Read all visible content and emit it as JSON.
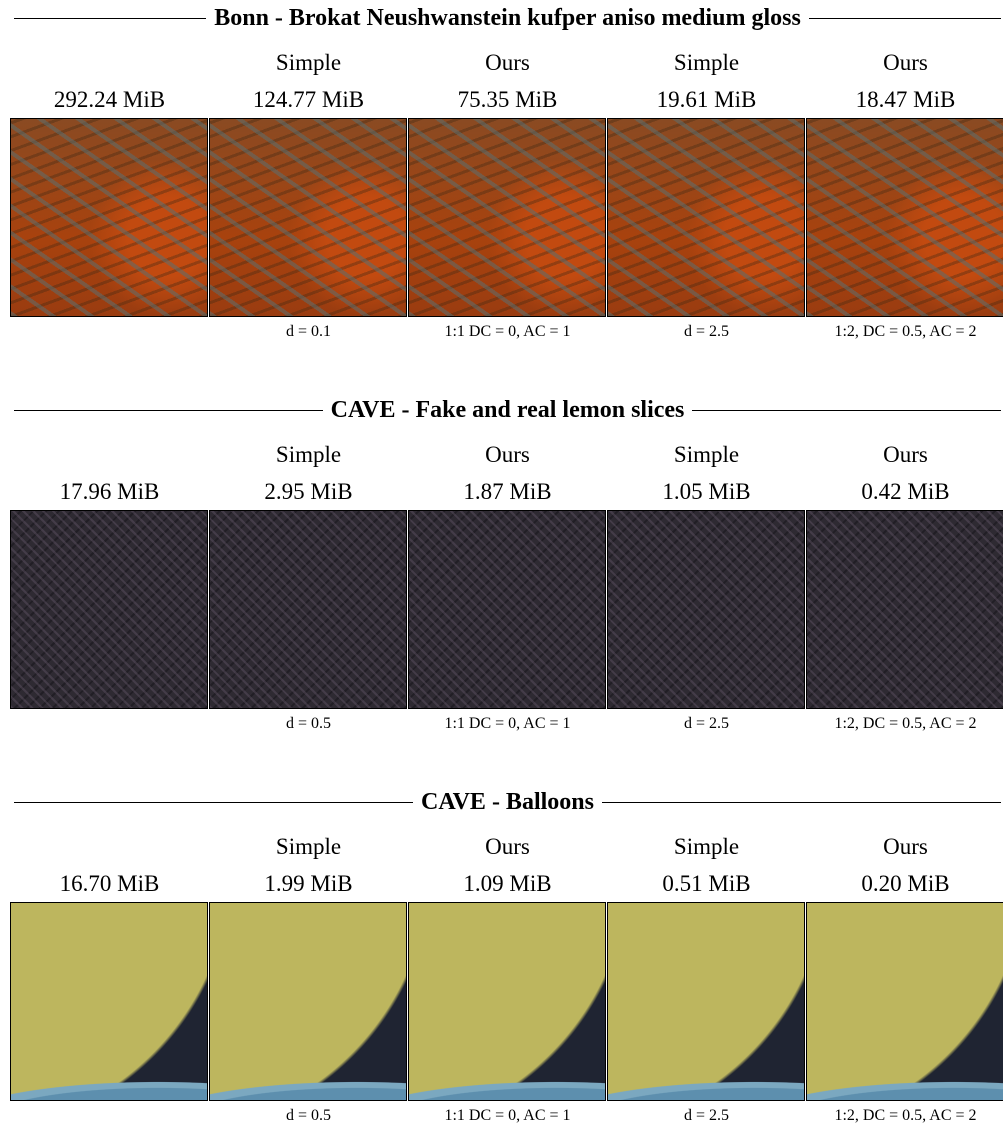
{
  "sections": [
    {
      "title": "Bonn - Brokat Neushwanstein kufper aniso medium gloss",
      "methods": [
        "Simple",
        "Ours",
        "Simple",
        "Ours"
      ],
      "sizes": [
        "292.24 MiB",
        "124.77 MiB",
        "75.35 MiB",
        "19.61 MiB",
        "18.47 MiB"
      ],
      "captions": [
        "d = 0.1",
        "1:1 DC = 0, AC = 1",
        "d = 2.5",
        "1:2, DC = 0.5, AC = 2"
      ]
    },
    {
      "title": "CAVE - Fake and real lemon slices",
      "methods": [
        "Simple",
        "Ours",
        "Simple",
        "Ours"
      ],
      "sizes": [
        "17.96 MiB",
        "2.95 MiB",
        "1.87 MiB",
        "1.05 MiB",
        "0.42 MiB"
      ],
      "captions": [
        "d = 0.5",
        "1:1 DC = 0, AC = 1",
        "d = 2.5",
        "1:2, DC = 0.5, AC = 2"
      ]
    },
    {
      "title": "CAVE - Balloons",
      "methods": [
        "Simple",
        "Ours",
        "Simple",
        "Ours"
      ],
      "sizes": [
        "16.70 MiB",
        "1.99 MiB",
        "1.09 MiB",
        "0.51 MiB",
        "0.20 MiB"
      ],
      "captions": [
        "d = 0.5",
        "1:1 DC = 0, AC = 1",
        "d = 2.5",
        "1:2, DC = 0.5, AC = 2"
      ]
    }
  ]
}
